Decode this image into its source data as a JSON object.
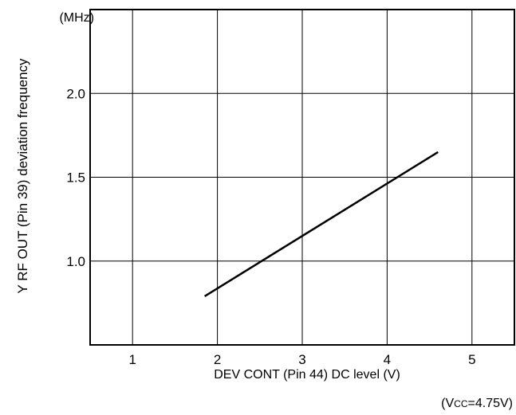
{
  "chart_data": {
    "type": "line",
    "xlabel": "DEV CONT (Pin 44) DC level (V)",
    "ylabel": "Y RF OUT (Pin 39) deviation frequency",
    "y_unit": "(MHz)",
    "condition": {
      "prefix": "(V",
      "sub": "CC",
      "suffix": "=4.75V)"
    },
    "xlim": [
      0.5,
      5.5
    ],
    "ylim": [
      0.5,
      2.5
    ],
    "x_ticks": [
      "1",
      "2",
      "3",
      "4",
      "5"
    ],
    "y_ticks": [
      "1.0",
      "1.5",
      "2.0"
    ],
    "grid": true,
    "series": [
      {
        "x": [
          1.85,
          4.6
        ],
        "y": [
          0.79,
          1.65
        ]
      }
    ]
  }
}
